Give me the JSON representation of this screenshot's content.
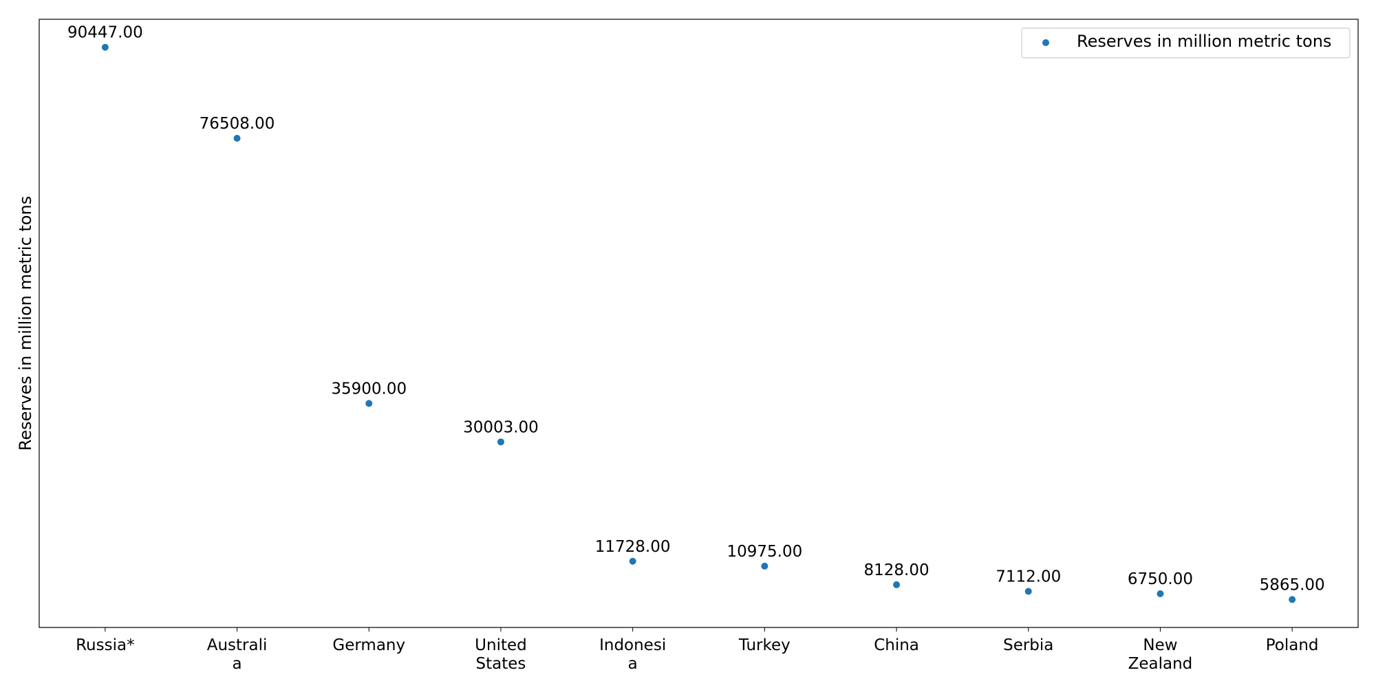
{
  "chart_data": {
    "type": "scatter",
    "title": "",
    "xlabel": "",
    "ylabel": "Reserves in million metric tons",
    "categories": [
      [
        "Russia*"
      ],
      [
        "Australi",
        "a"
      ],
      [
        "Germany"
      ],
      [
        "United",
        "States"
      ],
      [
        "Indonesi",
        "a"
      ],
      [
        "Turkey"
      ],
      [
        "China"
      ],
      [
        "Serbia"
      ],
      [
        "New",
        "Zealand"
      ],
      [
        "Poland"
      ]
    ],
    "series": [
      {
        "name": "Reserves in million metric tons",
        "values": [
          90447,
          76508,
          35900,
          30003,
          11728,
          10975,
          8128,
          7112,
          6750,
          5865
        ],
        "labels": [
          "90447.00",
          "76508.00",
          "35900.00",
          "30003.00",
          "11728.00",
          "10975.00",
          "8128.00",
          "7112.00",
          "6750.00",
          "5865.00"
        ],
        "color": "#1f77b4"
      }
    ],
    "ylim": [
      1586,
      94740
    ],
    "grid": false,
    "legend_position": "top-right",
    "y_ticks_visible": false
  }
}
